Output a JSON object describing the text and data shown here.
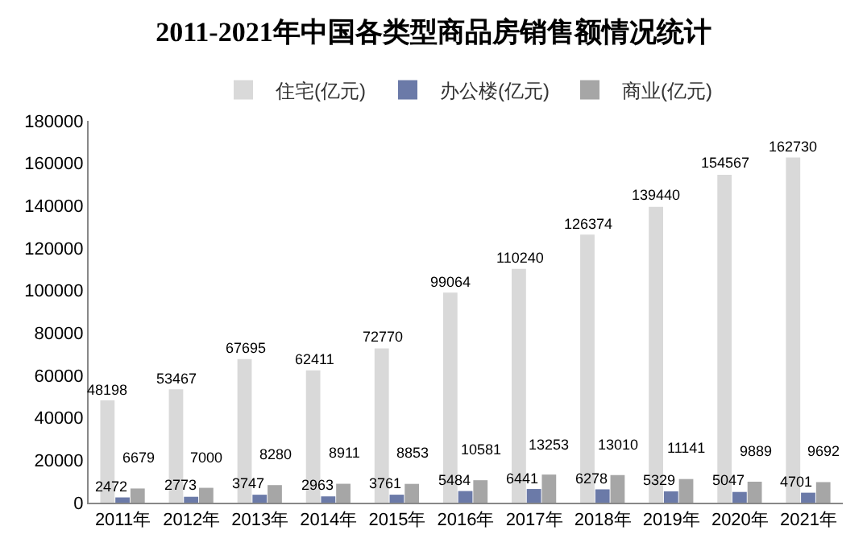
{
  "chart_data": {
    "type": "bar",
    "title": "2011-2021年中国各类型商品房销售额情况统计",
    "categories": [
      "2011年",
      "2012年",
      "2013年",
      "2014年",
      "2015年",
      "2016年",
      "2017年",
      "2018年",
      "2019年",
      "2020年",
      "2021年"
    ],
    "series": [
      {
        "name": "住宅(亿元)",
        "color": "#d9d9d9",
        "values": [
          48198,
          53467,
          67695,
          62411,
          72770,
          99064,
          110240,
          126374,
          139440,
          154567,
          162730
        ]
      },
      {
        "name": "办公楼(亿元)",
        "color": "#6b7aa8",
        "values": [
          2472,
          2773,
          3747,
          2963,
          3761,
          5484,
          6441,
          6278,
          5329,
          5047,
          4701
        ]
      },
      {
        "name": "商业(亿元)",
        "color": "#a6a6a6",
        "values": [
          6679,
          7000,
          8280,
          8911,
          8853,
          10581,
          13253,
          13010,
          11141,
          9889,
          9692
        ]
      }
    ],
    "ylim": [
      0,
      180000
    ],
    "yticks": [
      0,
      20000,
      40000,
      60000,
      80000,
      100000,
      120000,
      140000,
      160000,
      180000
    ],
    "data_labels": true,
    "legend": "top",
    "grid": false
  }
}
